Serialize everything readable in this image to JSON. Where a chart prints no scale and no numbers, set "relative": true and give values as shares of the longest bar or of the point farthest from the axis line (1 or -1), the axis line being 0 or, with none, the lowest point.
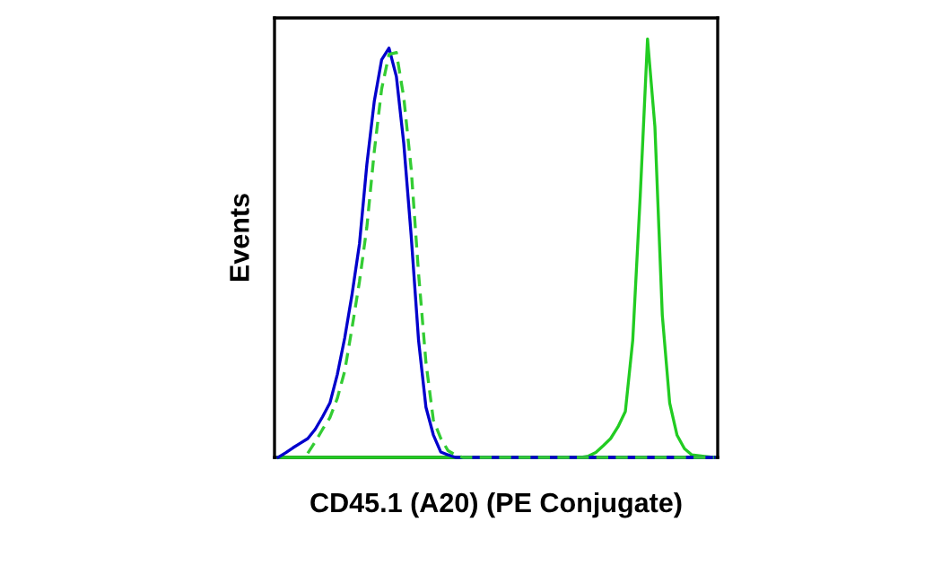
{
  "chart_data": {
    "type": "line",
    "xlabel": "CD45.1 (A20) (PE Conjugate)",
    "ylabel": "Events",
    "relative": true,
    "categories": [
      null,
      null,
      null,
      null,
      null,
      null,
      null,
      null,
      null,
      null,
      null,
      null,
      null,
      null,
      null,
      null,
      null,
      null,
      null,
      null,
      null,
      null,
      null,
      null,
      null,
      null,
      null,
      null,
      null,
      null,
      null,
      null,
      null,
      null,
      null,
      null,
      null,
      null,
      null,
      null,
      null,
      null,
      null,
      null,
      null,
      null,
      null,
      null,
      null,
      null,
      null,
      null,
      null,
      null,
      null,
      null,
      null,
      null,
      null,
      null
    ],
    "marker": "none",
    "series": [
      {
        "color": "#22cc22",
        "line_style": "solid",
        "values": [
          0,
          0,
          0,
          0,
          0,
          0,
          0,
          0,
          0,
          0,
          0,
          0,
          0,
          0,
          0,
          0,
          0,
          0,
          0,
          0,
          0,
          0,
          0,
          0,
          0,
          0,
          0,
          0,
          0,
          0,
          0,
          0,
          0,
          0,
          0,
          0,
          0,
          0,
          0,
          0,
          0,
          0,
          0.003,
          0.012,
          0.028,
          0.045,
          0.073,
          0.11,
          0.28,
          0.62,
          1,
          0.79,
          0.34,
          0.13,
          0.053,
          0.021,
          0.006,
          0.004,
          0.002,
          0
        ]
      },
      {
        "color": "#0000cc",
        "line_style": "solid",
        "values": [
          0,
          0.011,
          0.023,
          0.034,
          0.045,
          0.067,
          0.097,
          0.13,
          0.198,
          0.285,
          0.39,
          0.51,
          0.7,
          0.85,
          0.95,
          0.978,
          0.91,
          0.75,
          0.53,
          0.28,
          0.12,
          0.054,
          0.013,
          0.006,
          0,
          0,
          0,
          0,
          0,
          0,
          0,
          0,
          0,
          0,
          0,
          0,
          0,
          0,
          0,
          0,
          0,
          0,
          0,
          0,
          0,
          0,
          0,
          0,
          0,
          0,
          0,
          0,
          0,
          0,
          0,
          0,
          0,
          0,
          0,
          0
        ]
      },
      {
        "color": "#33cc33",
        "line_style": "dashed",
        "values": [
          null,
          null,
          null,
          null,
          0.01,
          0.037,
          0.067,
          0.095,
          0.141,
          0.206,
          0.31,
          0.42,
          0.55,
          0.73,
          0.88,
          0.963,
          0.967,
          0.86,
          0.69,
          0.44,
          0.227,
          0.09,
          0.046,
          0.016,
          0.006,
          0,
          0,
          0,
          0,
          0,
          0,
          0,
          0,
          0,
          0,
          0,
          0,
          0,
          0,
          0,
          0,
          0,
          0,
          0,
          0,
          0,
          0,
          0,
          0,
          0,
          0,
          0,
          0,
          0,
          0,
          0,
          0,
          0,
          0,
          0
        ]
      }
    ]
  }
}
